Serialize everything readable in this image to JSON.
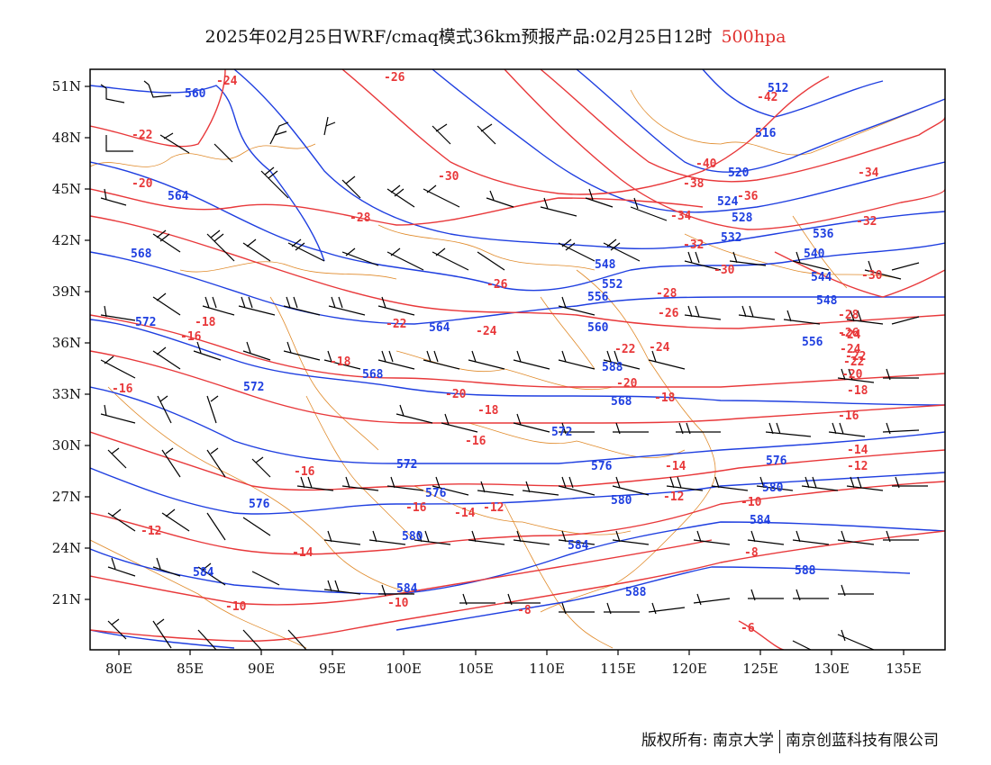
{
  "header": {
    "title_main": "2025年02月25日WRF/cmaq模式36km预报产品:02月25日12时",
    "title_level": "500hpa"
  },
  "footer": {
    "left": "版权所有: 南京大学",
    "right": "南京创蓝科技有限公司"
  },
  "axes": {
    "lat_labels": [
      "51N",
      "48N",
      "45N",
      "42N",
      "39N",
      "36N",
      "33N",
      "30N",
      "27N",
      "24N",
      "21N"
    ],
    "lon_labels": [
      "80E",
      "85E",
      "90E",
      "95E",
      "100E",
      "105E",
      "110E",
      "115E",
      "120E",
      "125E",
      "130E",
      "135E"
    ]
  },
  "colors": {
    "height": "#1f3fe0",
    "temperature": "#e8383a",
    "border": "#e08a2a",
    "wind": "#000000"
  },
  "contours": {
    "height_labels": [
      "560",
      "564",
      "568",
      "572",
      "572",
      "572",
      "568",
      "564",
      "560",
      "556",
      "552",
      "548",
      "540",
      "532",
      "528",
      "524",
      "520",
      "516",
      "512",
      "536",
      "544",
      "548",
      "556",
      "576",
      "580",
      "584",
      "588",
      "584",
      "580",
      "576",
      "584",
      "588",
      "576",
      "576",
      "580",
      "584",
      "588",
      "572",
      "568"
    ],
    "temperature_labels": [
      "-24",
      "-26",
      "-22",
      "-20",
      "-30",
      "-28",
      "-26",
      "-24",
      "-22",
      "-18",
      "-16",
      "-16",
      "-18",
      "-22",
      "-24",
      "-20",
      "-18",
      "-16",
      "-16",
      "-14",
      "-12",
      "-10",
      "-14",
      "-12",
      "-16",
      "-18",
      "-20",
      "-22",
      "-24",
      "-26",
      "-28",
      "-30",
      "-32",
      "-34",
      "-36",
      "-38",
      "-40",
      "-42",
      "-34",
      "-32",
      "-30",
      "-28",
      "-26",
      "-24",
      "-22",
      "-20",
      "-18",
      "-16",
      "-14",
      "-12",
      "-10",
      "-8",
      "-6",
      "-8",
      "-10",
      "-12",
      "-14"
    ]
  }
}
